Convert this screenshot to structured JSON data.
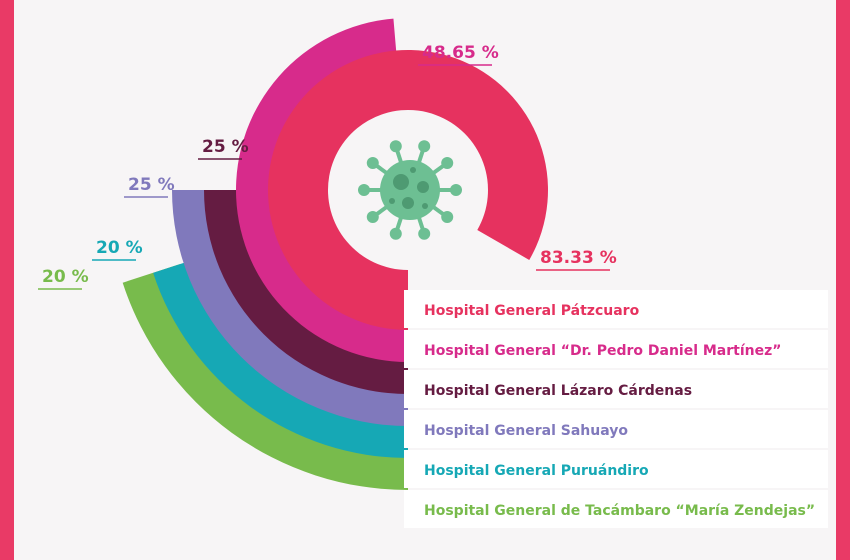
{
  "colors": {
    "frame": "#e93a66",
    "background": "#f7f5f6",
    "virus": "#6dbf93"
  },
  "icons": {
    "center": "virus-icon"
  },
  "chart_data": {
    "type": "radial-bar",
    "series": [
      {
        "name": "Hospital General Pátzcuaro",
        "value": 83.33,
        "label": "83.33 %",
        "color": "#e6325f"
      },
      {
        "name": "Hospital General “Dr. Pedro Daniel Martínez”",
        "value": 48.65,
        "label": "48.65 %",
        "color": "#d72b8b"
      },
      {
        "name": "Hospital General Lázaro Cárdenas",
        "value": 25,
        "label": "25 %",
        "color": "#651c42"
      },
      {
        "name": "Hospital General Sahuayo",
        "value": 25,
        "label": "25 %",
        "color": "#8079bc"
      },
      {
        "name": "Hospital General Puruándiro",
        "value": 20,
        "label": "20 %",
        "color": "#16a8b5"
      },
      {
        "name": "Hospital General de Tacámbaro “María Zendejas”",
        "value": 20,
        "label": "20 %",
        "color": "#78bb4c"
      }
    ]
  }
}
